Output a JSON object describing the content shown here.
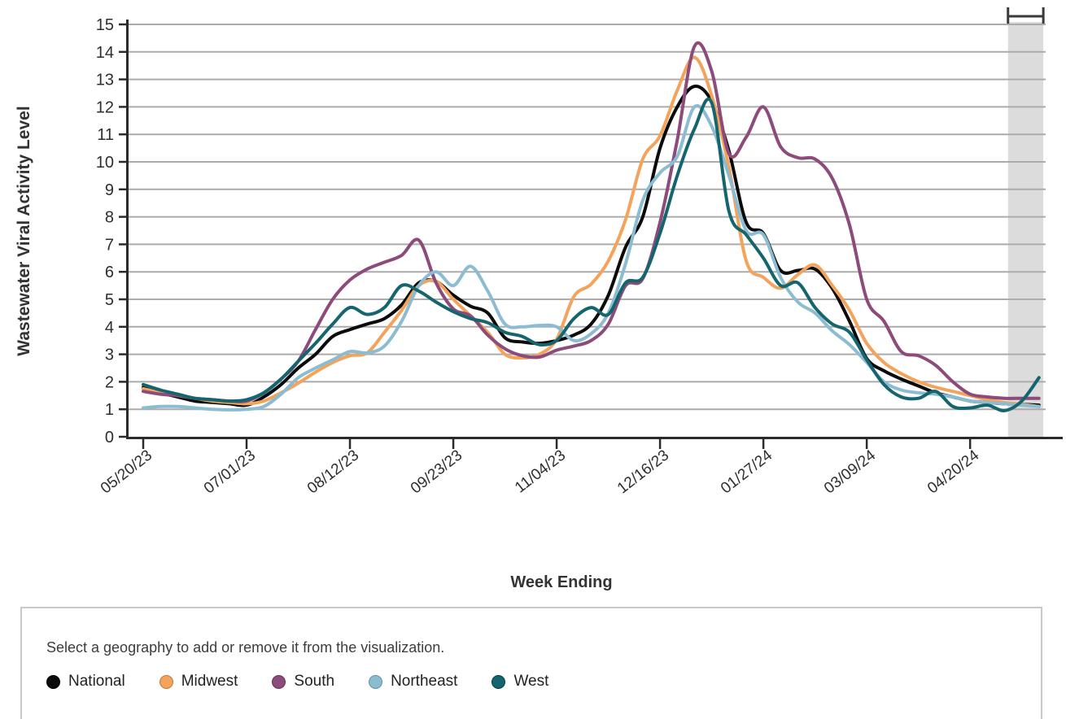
{
  "chart_data": {
    "type": "line",
    "title": "",
    "xlabel": "Week Ending",
    "ylabel": "Wastewater Viral Activity Level",
    "ylim": [
      0,
      15
    ],
    "y_tick_step": 1,
    "grid": "horizontal",
    "x_tick_labels": [
      "05/20/23",
      "07/01/23",
      "08/12/23",
      "09/23/23",
      "11/04/23",
      "12/16/23",
      "01/27/24",
      "03/09/24",
      "04/20/24"
    ],
    "x_tick_week_indices": [
      0,
      6,
      12,
      18,
      24,
      30,
      36,
      42,
      48
    ],
    "weeks_total": 53,
    "provisional_band": {
      "start_week_index": 50.2,
      "end_week_index": 52.25
    },
    "series": [
      {
        "name": "National",
        "color": "#0b0b0b",
        "dot_border": "#000000",
        "values": [
          1.8,
          1.6,
          1.45,
          1.3,
          1.25,
          1.2,
          1.15,
          1.45,
          1.9,
          2.5,
          3.0,
          3.65,
          3.9,
          4.1,
          4.3,
          4.8,
          5.6,
          5.65,
          5.15,
          4.75,
          4.5,
          3.6,
          3.45,
          3.4,
          3.5,
          3.7,
          4.1,
          5.15,
          6.9,
          8.0,
          10.5,
          12.0,
          12.75,
          12.2,
          10.4,
          7.8,
          7.4,
          6.05,
          6.05,
          6.1,
          5.4,
          4.2,
          2.85,
          2.4,
          2.1,
          1.85,
          1.6,
          1.45,
          1.3,
          1.25,
          1.2,
          1.18,
          1.15
        ]
      },
      {
        "name": "Midwest",
        "color": "#f3a35c",
        "dot_border": "#c07c33",
        "values": [
          1.75,
          1.6,
          1.5,
          1.4,
          1.3,
          1.25,
          1.2,
          1.3,
          1.6,
          1.95,
          2.35,
          2.7,
          2.95,
          3.05,
          3.8,
          4.6,
          5.5,
          5.65,
          5.0,
          4.4,
          3.8,
          3.0,
          2.87,
          3.0,
          3.55,
          5.1,
          5.55,
          6.4,
          7.9,
          10.1,
          10.95,
          12.6,
          13.8,
          12.4,
          9.8,
          6.4,
          5.8,
          5.4,
          5.9,
          6.25,
          5.5,
          4.6,
          3.4,
          2.7,
          2.3,
          2.0,
          1.8,
          1.65,
          1.5,
          1.35,
          1.25,
          1.18,
          1.1
        ]
      },
      {
        "name": "South",
        "color": "#8c4b7a",
        "dot_border": "#643457",
        "values": [
          1.65,
          1.55,
          1.5,
          1.4,
          1.35,
          1.3,
          1.3,
          1.6,
          2.1,
          2.75,
          3.9,
          5.0,
          5.7,
          6.1,
          6.35,
          6.6,
          7.15,
          5.6,
          4.65,
          4.4,
          3.7,
          3.2,
          2.95,
          2.9,
          3.15,
          3.3,
          3.5,
          4.1,
          5.5,
          5.75,
          7.8,
          10.8,
          14.2,
          13.3,
          10.3,
          10.9,
          12.0,
          10.55,
          10.15,
          10.1,
          9.4,
          7.7,
          5.0,
          4.2,
          3.1,
          2.95,
          2.6,
          2.0,
          1.55,
          1.45,
          1.4,
          1.4,
          1.4
        ]
      },
      {
        "name": "Northeast",
        "color": "#8cbcd2",
        "dot_border": "#5c93a8",
        "values": [
          1.05,
          1.1,
          1.1,
          1.05,
          1.0,
          0.98,
          1.0,
          1.1,
          1.55,
          2.15,
          2.5,
          2.8,
          3.1,
          3.05,
          3.3,
          4.2,
          5.5,
          6.0,
          5.5,
          6.2,
          5.3,
          4.1,
          4.0,
          4.05,
          4.0,
          3.5,
          3.75,
          4.5,
          6.3,
          8.6,
          9.6,
          10.2,
          12.0,
          11.3,
          9.5,
          7.5,
          7.35,
          5.8,
          4.9,
          4.5,
          3.85,
          3.35,
          2.7,
          2.0,
          1.7,
          1.6,
          1.55,
          1.45,
          1.3,
          1.25,
          1.2,
          1.15,
          1.1
        ]
      },
      {
        "name": "West",
        "color": "#15656e",
        "dot_border": "#063f47",
        "values": [
          1.9,
          1.7,
          1.55,
          1.4,
          1.35,
          1.3,
          1.35,
          1.6,
          2.1,
          2.75,
          3.4,
          4.1,
          4.7,
          4.45,
          4.7,
          5.5,
          5.3,
          4.9,
          4.55,
          4.3,
          4.15,
          3.8,
          3.65,
          3.35,
          3.5,
          4.3,
          4.7,
          4.45,
          5.6,
          5.8,
          7.4,
          9.5,
          11.2,
          12.15,
          8.2,
          7.35,
          6.5,
          5.5,
          5.6,
          4.7,
          4.1,
          3.8,
          2.8,
          1.9,
          1.45,
          1.4,
          1.65,
          1.1,
          1.05,
          1.15,
          0.95,
          1.3,
          2.15
        ]
      }
    ]
  },
  "axes": {
    "y_title": "Wastewater Viral Activity Level",
    "x_title": "Week Ending"
  },
  "legend": {
    "instruction": "Select a geography to add or remove it from the visualization."
  },
  "colors": {
    "grid": "#ababab",
    "axis": "#2b2b2b",
    "tick_text": "#2e2e2e",
    "band": "#dcdcdc",
    "bracket": "#3a3a3a"
  }
}
